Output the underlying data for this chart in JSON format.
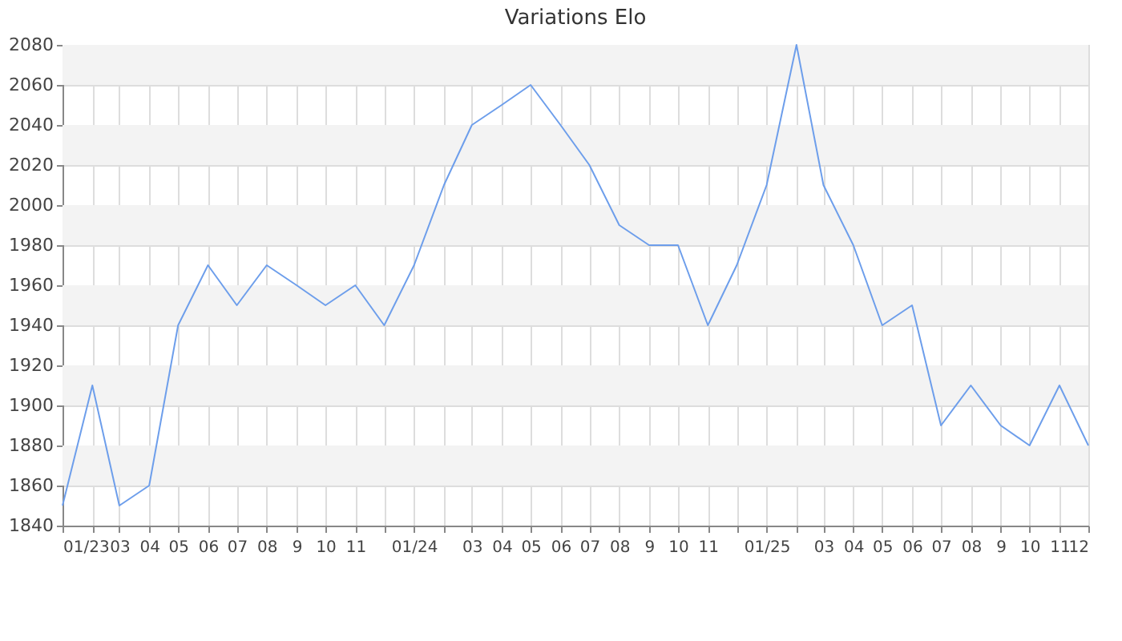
{
  "chart_data": {
    "type": "line",
    "title": "Variations Elo",
    "x": [
      "2023-01",
      "2023-02",
      "2023-03",
      "2023-04",
      "2023-05",
      "2023-06",
      "2023-07",
      "2023-08",
      "2023-09",
      "2023-10",
      "2023-11",
      "2023-12",
      "2024-01",
      "2024-02",
      "2024-03",
      "2024-04",
      "2024-05",
      "2024-06",
      "2024-07",
      "2024-08",
      "2024-09",
      "2024-10",
      "2024-11",
      "2024-12",
      "2025-01",
      "2025-02",
      "2025-03",
      "2025-04",
      "2025-05",
      "2025-06",
      "2025-07",
      "2025-08",
      "2025-09",
      "2025-10",
      "2025-11",
      "2025-12"
    ],
    "series": [
      {
        "color": "#6d9eeb",
        "values": [
          1850,
          1910,
          1850,
          1860,
          1940,
          1970,
          1950,
          1970,
          1960,
          1950,
          1960,
          1940,
          1970,
          2010,
          2040,
          2050,
          2060,
          2040,
          2020,
          1990,
          1980,
          1980,
          1940,
          1970,
          2010,
          2080,
          2010,
          1980,
          1940,
          1950,
          1890,
          1910,
          1890,
          1880,
          1910,
          1880
        ]
      }
    ],
    "xlim": [
      "2023-01",
      "2025-12"
    ],
    "xticks": [
      {
        "value": "2023-01",
        "label": "01/23"
      },
      {
        "value": "2023-02",
        "label": null
      },
      {
        "value": "2023-03",
        "label": "03"
      },
      {
        "value": "2023-04",
        "label": "04"
      },
      {
        "value": "2023-05",
        "label": "05"
      },
      {
        "value": "2023-06",
        "label": "06"
      },
      {
        "value": "2023-07",
        "label": "07"
      },
      {
        "value": "2023-08",
        "label": "08"
      },
      {
        "value": "2023-09",
        "label": "9"
      },
      {
        "value": "2023-10",
        "label": "10"
      },
      {
        "value": "2023-11",
        "label": "11"
      },
      {
        "value": "2023-12",
        "label": null
      },
      {
        "value": "2024-01",
        "label": "01/24"
      },
      {
        "value": "2024-02",
        "label": null
      },
      {
        "value": "2024-03",
        "label": "03"
      },
      {
        "value": "2024-04",
        "label": "04"
      },
      {
        "value": "2024-05",
        "label": "05"
      },
      {
        "value": "2024-06",
        "label": "06"
      },
      {
        "value": "2024-07",
        "label": "07"
      },
      {
        "value": "2024-08",
        "label": "08"
      },
      {
        "value": "2024-09",
        "label": "9"
      },
      {
        "value": "2024-10",
        "label": "10"
      },
      {
        "value": "2024-11",
        "label": "11"
      },
      {
        "value": "2024-12",
        "label": null
      },
      {
        "value": "2025-01",
        "label": "01/25"
      },
      {
        "value": "2025-02",
        "label": null
      },
      {
        "value": "2025-03",
        "label": "03"
      },
      {
        "value": "2025-04",
        "label": "04"
      },
      {
        "value": "2025-05",
        "label": "05"
      },
      {
        "value": "2025-06",
        "label": "06"
      },
      {
        "value": "2025-07",
        "label": "07"
      },
      {
        "value": "2025-08",
        "label": "08"
      },
      {
        "value": "2025-09",
        "label": "9"
      },
      {
        "value": "2025-10",
        "label": "10"
      },
      {
        "value": "2025-11",
        "label": "11"
      },
      {
        "value": "2025-12",
        "label": "12"
      }
    ],
    "ylim": [
      1840,
      2080
    ],
    "yticks": [
      1840,
      1860,
      1880,
      1900,
      1920,
      1940,
      1960,
      1980,
      2000,
      2020,
      2040,
      2060,
      2080
    ],
    "grid": true,
    "marker": "none",
    "line_style": "solid"
  }
}
